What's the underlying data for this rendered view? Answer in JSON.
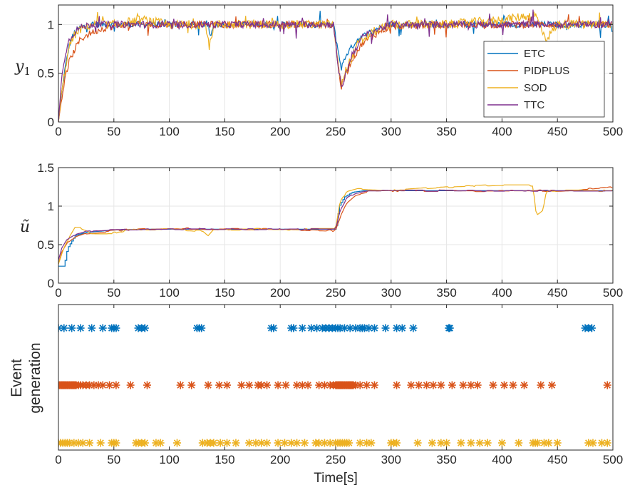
{
  "chart_data": [
    {
      "type": "line",
      "ylabel": "y1",
      "xlim": [
        0,
        500
      ],
      "ylim": [
        0,
        1.2
      ],
      "xticks": [
        0,
        50,
        100,
        150,
        200,
        250,
        300,
        350,
        400,
        450,
        500
      ],
      "yticks": [
        0,
        0.5,
        1
      ],
      "ytick_labels": [
        "0",
        "0.5",
        "1"
      ],
      "grid": true,
      "legend_position": "bottom-right",
      "series": [
        {
          "name": "ETC",
          "color": "#0072BD",
          "x": [
            0,
            3,
            6,
            10,
            15,
            20,
            30,
            50,
            75,
            100,
            135,
            137,
            140,
            200,
            248,
            252,
            255,
            260,
            270,
            285,
            300,
            350,
            400,
            450,
            500
          ],
          "y": [
            0,
            0.3,
            0.55,
            0.8,
            0.93,
            0.97,
            1.0,
            1.0,
            1.0,
            1.0,
            1.0,
            0.85,
            1.0,
            1.0,
            1.0,
            0.75,
            0.55,
            0.7,
            0.85,
            0.95,
            1.0,
            1.0,
            1.0,
            1.0,
            1.0
          ]
        },
        {
          "name": "PIDPLUS",
          "color": "#D95319",
          "x": [
            0,
            3,
            6,
            10,
            15,
            20,
            30,
            40,
            60,
            75,
            100,
            135,
            140,
            200,
            248,
            252,
            255,
            258,
            265,
            275,
            290,
            300,
            350,
            400,
            450,
            500
          ],
          "y": [
            0,
            0.25,
            0.45,
            0.62,
            0.75,
            0.85,
            0.92,
            0.96,
            1.0,
            1.0,
            1.0,
            1.0,
            1.0,
            1.0,
            1.0,
            0.6,
            0.35,
            0.45,
            0.65,
            0.82,
            0.93,
            0.98,
            1.0,
            1.0,
            1.0,
            1.0
          ]
        },
        {
          "name": "SOD",
          "color": "#EDB120",
          "x": [
            0,
            3,
            6,
            10,
            15,
            20,
            30,
            50,
            75,
            100,
            133,
            136,
            140,
            200,
            248,
            252,
            255,
            260,
            270,
            285,
            300,
            350,
            400,
            430,
            440,
            450,
            500
          ],
          "y": [
            0,
            0.3,
            0.55,
            0.78,
            0.9,
            0.95,
            1.0,
            1.0,
            1.05,
            1.0,
            1.0,
            0.75,
            1.0,
            1.0,
            1.0,
            0.6,
            0.4,
            0.55,
            0.8,
            0.93,
            1.0,
            1.0,
            1.05,
            1.1,
            0.85,
            1.0,
            1.0
          ]
        },
        {
          "name": "TTC",
          "color": "#7E2F8E",
          "x": [
            0,
            3,
            6,
            10,
            15,
            20,
            30,
            50,
            75,
            100,
            135,
            140,
            200,
            248,
            252,
            255,
            258,
            265,
            275,
            290,
            300,
            350,
            400,
            450,
            500
          ],
          "y": [
            0,
            0.45,
            0.7,
            0.85,
            0.93,
            0.97,
            1.0,
            1.0,
            1.0,
            1.0,
            1.0,
            1.0,
            1.0,
            1.0,
            0.6,
            0.35,
            0.45,
            0.7,
            0.88,
            0.96,
            1.0,
            1.0,
            1.0,
            1.0,
            1.0
          ]
        }
      ]
    },
    {
      "type": "line",
      "ylabel": "ũ",
      "xlim": [
        0,
        500
      ],
      "ylim": [
        0,
        1.5
      ],
      "xticks": [
        0,
        50,
        100,
        150,
        200,
        250,
        300,
        350,
        400,
        450,
        500
      ],
      "yticks": [
        0,
        0.5,
        1,
        1.5
      ],
      "ytick_labels": [
        "0",
        "0.5",
        "1",
        "1.5"
      ],
      "grid": true,
      "series": [
        {
          "name": "ETC",
          "color": "#0072BD",
          "x": [
            0,
            5,
            8,
            15,
            25,
            50,
            75,
            100,
            150,
            200,
            250,
            253,
            258,
            265,
            275,
            300,
            350,
            400,
            450,
            500
          ],
          "y": [
            0.22,
            0.22,
            0.45,
            0.62,
            0.66,
            0.69,
            0.7,
            0.7,
            0.7,
            0.7,
            0.7,
            1.0,
            1.12,
            1.18,
            1.2,
            1.2,
            1.2,
            1.2,
            1.2,
            1.2
          ]
        },
        {
          "name": "PIDPLUS",
          "color": "#D95319",
          "x": [
            0,
            3,
            8,
            15,
            25,
            50,
            75,
            100,
            150,
            200,
            250,
            255,
            260,
            268,
            280,
            300,
            350,
            400,
            450,
            500
          ],
          "y": [
            0.25,
            0.4,
            0.52,
            0.6,
            0.65,
            0.68,
            0.7,
            0.71,
            0.7,
            0.7,
            0.68,
            0.9,
            1.05,
            1.15,
            1.19,
            1.2,
            1.2,
            1.2,
            1.2,
            1.24
          ]
        },
        {
          "name": "SOD",
          "color": "#EDB120",
          "x": [
            0,
            5,
            10,
            15,
            20,
            30,
            50,
            70,
            100,
            130,
            135,
            140,
            200,
            250,
            254,
            260,
            270,
            300,
            350,
            400,
            428,
            431,
            437,
            440,
            450,
            500
          ],
          "y": [
            0.25,
            0.45,
            0.6,
            0.72,
            0.72,
            0.65,
            0.65,
            0.7,
            0.7,
            0.68,
            0.62,
            0.7,
            0.7,
            0.7,
            1.05,
            1.18,
            1.22,
            1.2,
            1.25,
            1.27,
            1.27,
            0.88,
            0.95,
            1.2,
            1.2,
            1.2
          ]
        },
        {
          "name": "TTC",
          "color": "#7E2F8E",
          "x": [
            0,
            3,
            8,
            15,
            25,
            50,
            75,
            100,
            150,
            200,
            250,
            254,
            260,
            268,
            280,
            300,
            350,
            400,
            450,
            500
          ],
          "y": [
            0.3,
            0.45,
            0.57,
            0.63,
            0.67,
            0.69,
            0.7,
            0.7,
            0.7,
            0.7,
            0.7,
            0.95,
            1.1,
            1.17,
            1.2,
            1.2,
            1.2,
            1.2,
            1.2,
            1.2
          ]
        }
      ]
    },
    {
      "type": "scatter",
      "ylabel": "Event generation",
      "xlabel": "Time[s]",
      "xlim": [
        0,
        500
      ],
      "xticks": [
        0,
        50,
        100,
        150,
        200,
        250,
        300,
        350,
        400,
        450,
        500
      ],
      "marker": "*",
      "series": [
        {
          "name": "ETC",
          "color": "#0072BD",
          "level": 3,
          "x": [
            0,
            5,
            12,
            20,
            30,
            40,
            48,
            50,
            52,
            72,
            75,
            78,
            125,
            127,
            129,
            192,
            194,
            210,
            212,
            220,
            228,
            233,
            238,
            241,
            244,
            247,
            250,
            252,
            254,
            258,
            263,
            268,
            272,
            274,
            276,
            280,
            285,
            295,
            305,
            310,
            320,
            352,
            353,
            475,
            478,
            481
          ]
        },
        {
          "name": "PIDPLUS",
          "color": "#D95319",
          "level": 2,
          "x": [
            0,
            1,
            2,
            3,
            4,
            5,
            6,
            7,
            8,
            9,
            10,
            11,
            12,
            13,
            14,
            15,
            16,
            18,
            20,
            22,
            25,
            28,
            32,
            36,
            40,
            46,
            52,
            65,
            80,
            110,
            120,
            135,
            145,
            152,
            165,
            172,
            180,
            183,
            188,
            198,
            205,
            215,
            220,
            225,
            235,
            240,
            245,
            248,
            250,
            251,
            252,
            253,
            254,
            255,
            256,
            257,
            258,
            259,
            260,
            261,
            262,
            263,
            264,
            265,
            266,
            268,
            272,
            278,
            285,
            305,
            318,
            325,
            332,
            338,
            345,
            355,
            365,
            372,
            378,
            392,
            402,
            410,
            420,
            435,
            445,
            495
          ]
        },
        {
          "name": "SOD",
          "color": "#EDB120",
          "level": 1,
          "x": [
            0,
            2,
            4,
            6,
            8,
            10,
            14,
            18,
            22,
            28,
            38,
            48,
            50,
            52,
            70,
            72,
            75,
            78,
            88,
            92,
            107,
            130,
            134,
            137,
            140,
            146,
            152,
            160,
            172,
            178,
            183,
            188,
            198,
            204,
            210,
            215,
            222,
            232,
            235,
            240,
            245,
            250,
            252,
            254,
            256,
            258,
            260,
            262,
            272,
            278,
            282,
            300,
            302,
            305,
            324,
            337,
            345,
            350,
            363,
            372,
            380,
            387,
            400,
            415,
            428,
            430,
            432,
            438,
            442,
            450,
            478,
            482,
            490,
            495
          ]
        }
      ]
    }
  ]
}
